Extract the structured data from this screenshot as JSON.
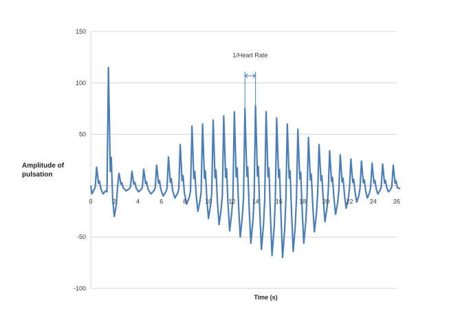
{
  "chart_data": {
    "type": "line",
    "title": "",
    "xlabel": "Time (s)",
    "ylabel_lines": [
      "Amplitude of",
      "pulsation"
    ],
    "xlim": [
      0,
      26
    ],
    "ylim": [
      -100,
      150
    ],
    "x_ticks": [
      0,
      2,
      4,
      6,
      8,
      10,
      12,
      14,
      16,
      18,
      20,
      22,
      24,
      26
    ],
    "x_tick_labels": [
      "0",
      "2",
      "4",
      "6",
      "8",
      "10",
      "12",
      "14",
      "16",
      "18",
      "20",
      "22",
      "24",
      "26"
    ],
    "y_ticks": [
      -100,
      -50,
      0,
      50,
      100,
      150
    ],
    "y_tick_labels": [
      "-100",
      "-50",
      "",
      "50",
      "100",
      "150"
    ],
    "grid": true,
    "color": "#4a7ebb",
    "annotation": {
      "text": "1/Heart Rate",
      "x_start": 13.1,
      "x_end": 14.0,
      "y_arrow": 107,
      "y_label": 125
    },
    "series": [
      {
        "beats": [
          {
            "t": 0.5,
            "peak": 18,
            "trough": -8
          },
          {
            "t": 1.5,
            "peak": 115,
            "trough": -30
          },
          {
            "t": 2.4,
            "peak": 12,
            "trough": -5
          },
          {
            "t": 3.5,
            "peak": 14,
            "trough": -6
          },
          {
            "t": 4.5,
            "peak": 16,
            "trough": -8
          },
          {
            "t": 5.6,
            "peak": 20,
            "trough": -10
          },
          {
            "t": 6.6,
            "peak": 28,
            "trough": -12
          },
          {
            "t": 7.6,
            "peak": 40,
            "trough": -18
          },
          {
            "t": 8.6,
            "peak": 58,
            "trough": -25
          },
          {
            "t": 9.5,
            "peak": 60,
            "trough": -32
          },
          {
            "t": 10.4,
            "peak": 64,
            "trough": -38
          },
          {
            "t": 11.3,
            "peak": 68,
            "trough": -44
          },
          {
            "t": 12.2,
            "peak": 72,
            "trough": -50
          },
          {
            "t": 13.1,
            "peak": 75,
            "trough": -56
          },
          {
            "t": 14.0,
            "peak": 78,
            "trough": -62
          },
          {
            "t": 14.9,
            "peak": 72,
            "trough": -68
          },
          {
            "t": 15.8,
            "peak": 66,
            "trough": -70
          },
          {
            "t": 16.7,
            "peak": 60,
            "trough": -64
          },
          {
            "t": 17.6,
            "peak": 55,
            "trough": -56
          },
          {
            "t": 18.5,
            "peak": 47,
            "trough": -45
          },
          {
            "t": 19.4,
            "peak": 40,
            "trough": -35
          },
          {
            "t": 20.3,
            "peak": 34,
            "trough": -28
          },
          {
            "t": 21.2,
            "peak": 30,
            "trough": -22
          },
          {
            "t": 22.1,
            "peak": 26,
            "trough": -16
          },
          {
            "t": 23.0,
            "peak": 24,
            "trough": -12
          },
          {
            "t": 23.9,
            "peak": 22,
            "trough": -8
          },
          {
            "t": 24.8,
            "peak": 21,
            "trough": -6
          },
          {
            "t": 25.7,
            "peak": 20,
            "trough": -5
          }
        ]
      }
    ]
  }
}
